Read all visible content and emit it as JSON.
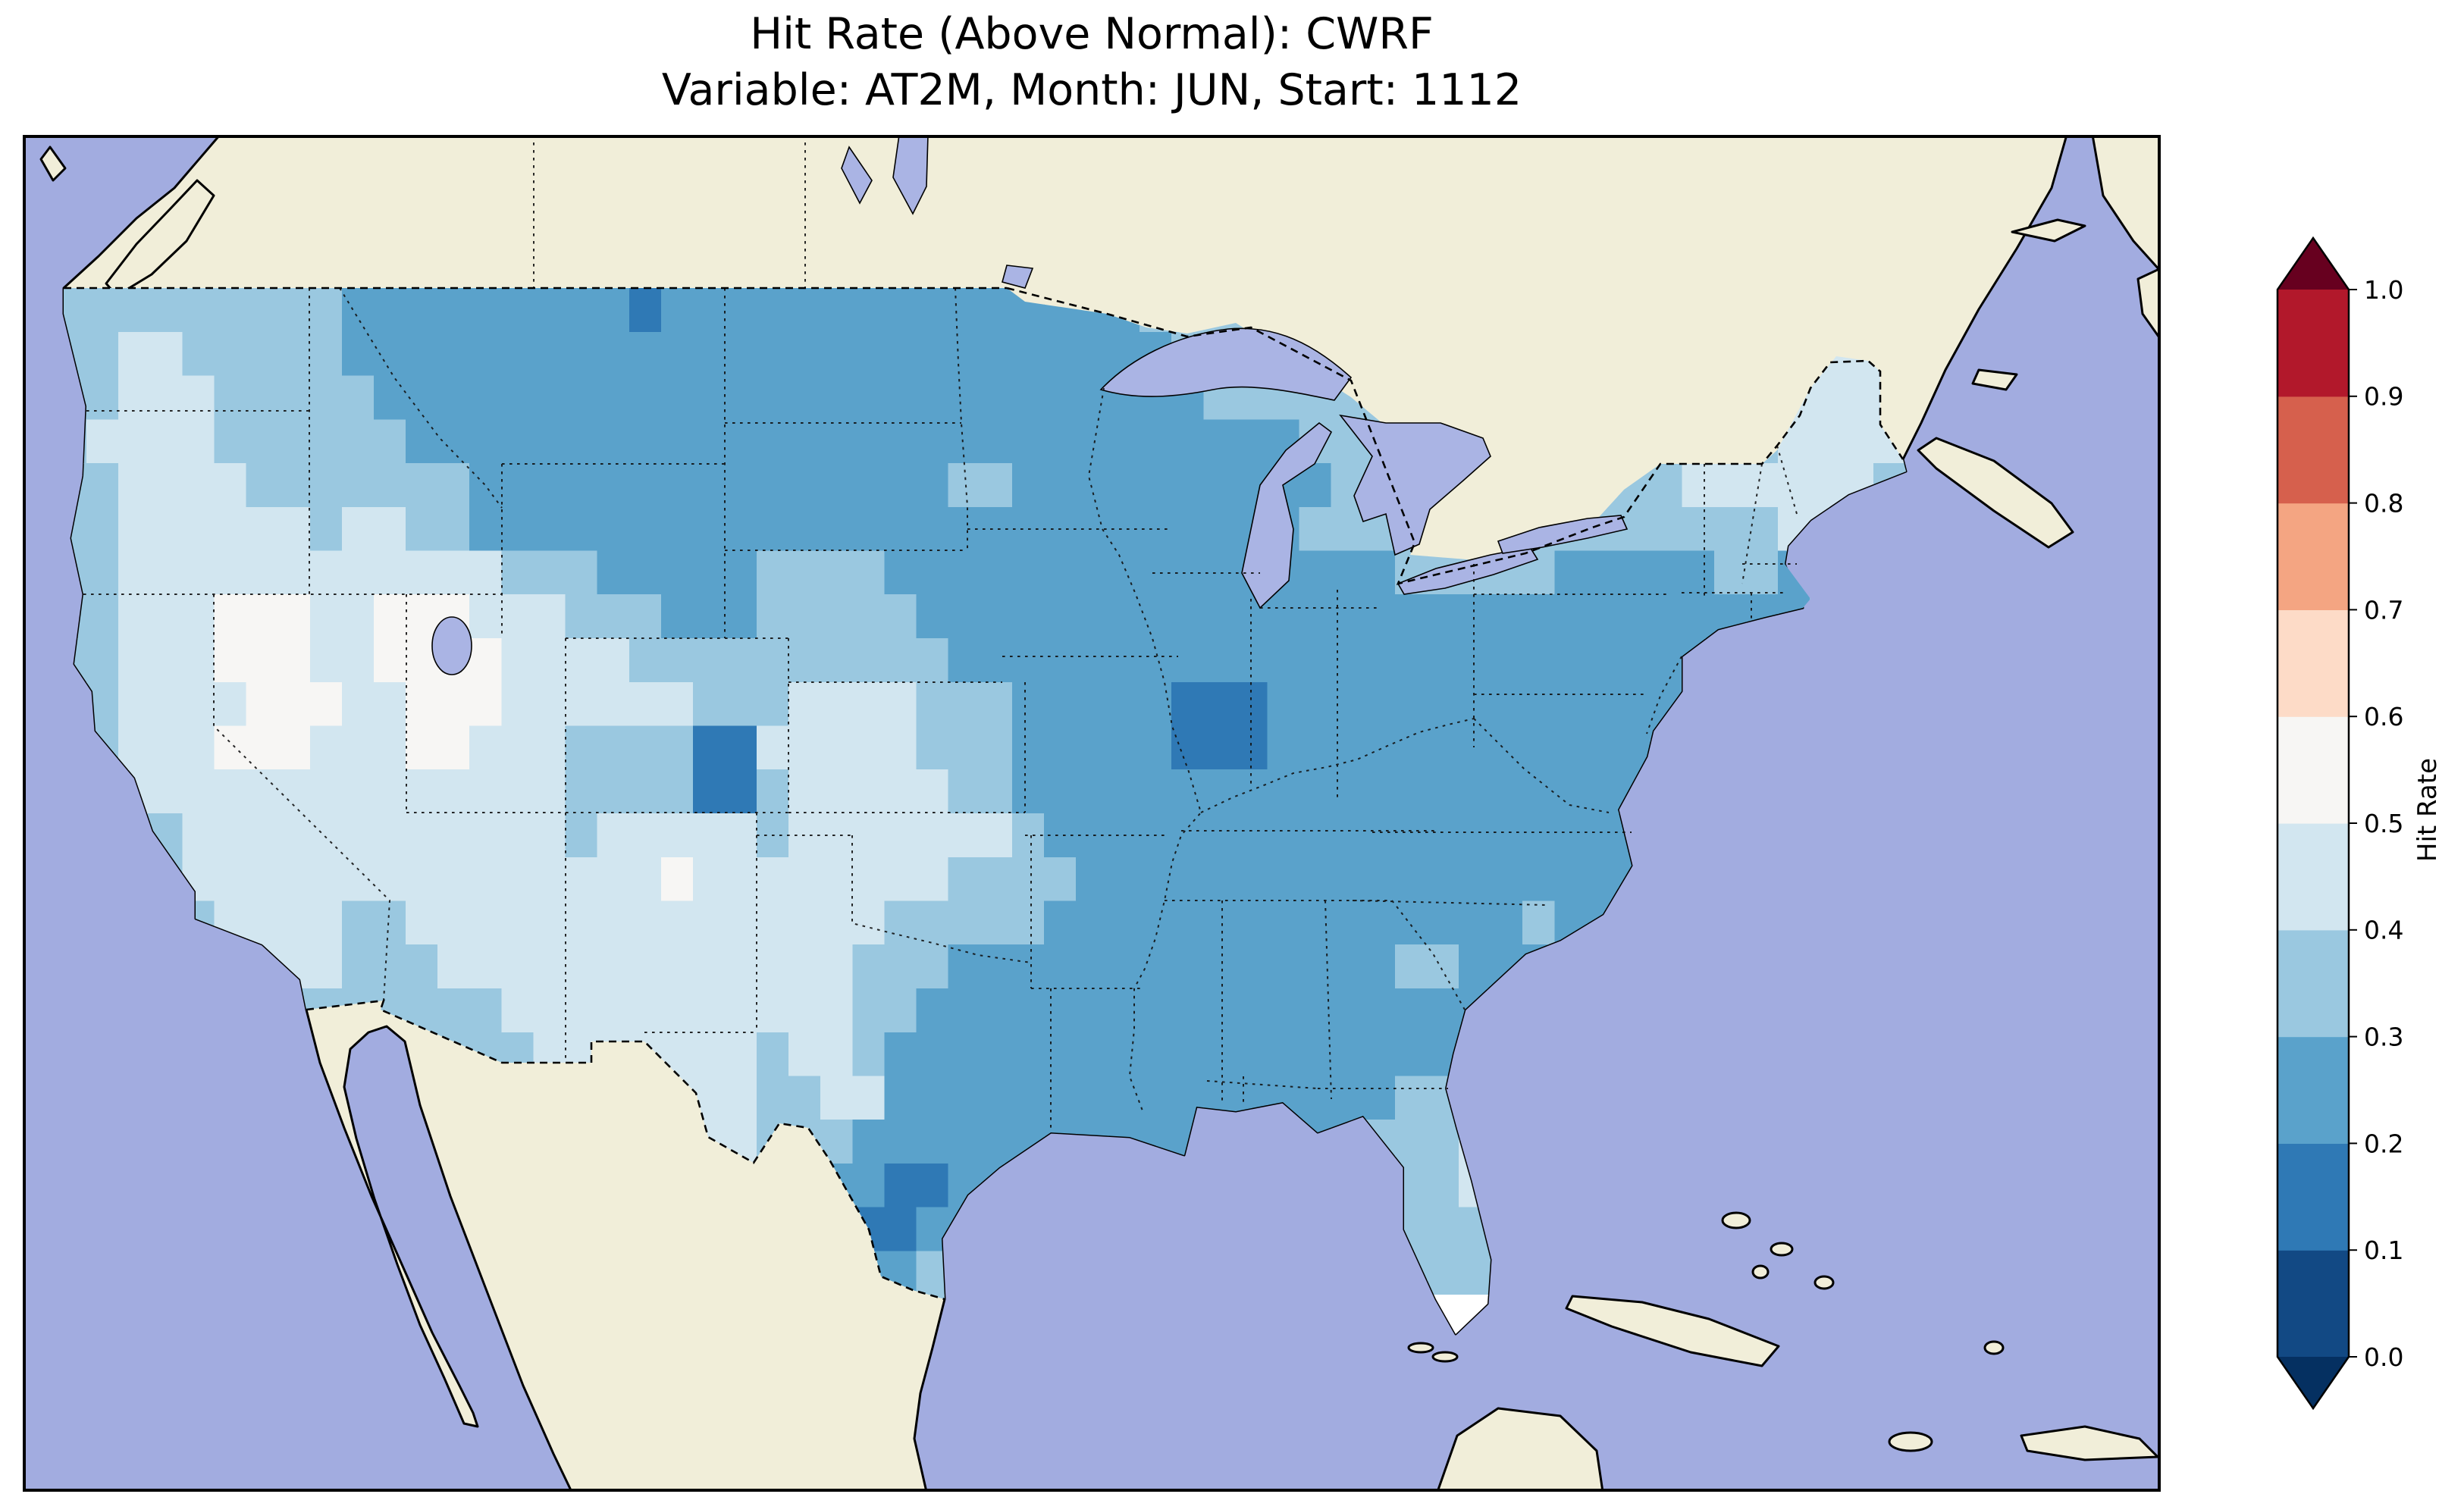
{
  "title": {
    "line1": "Hit Rate (Above Normal): CWRF",
    "line2": "Variable: AT2M, Month: JUN, Start: 1112"
  },
  "colors": {
    "ocean": "#a2ace0",
    "land": "#f1eed9",
    "lake": "#aab4e4",
    "missing": "#ffffff",
    "coastline": "#000000"
  },
  "chart_data": {
    "type": "heatmap",
    "title": "Hit Rate (Above Normal): CWRF",
    "subtitle": "Variable: AT2M, Month: JUN, Start: 1112",
    "model": "CWRF",
    "variable": "AT2M",
    "month": "JUN",
    "start": "1112",
    "region": "Contiguous United States",
    "projection_extent": {
      "lon_min": -126,
      "lon_max": -59,
      "lat_min": 21.5,
      "lat_max": 52.5
    },
    "colorbar": {
      "label": "Hit Rate",
      "ticks": [
        "0.0",
        "0.1",
        "0.2",
        "0.3",
        "0.4",
        "0.5",
        "0.6",
        "0.7",
        "0.8",
        "0.9",
        "1.0"
      ],
      "bin_edges": [
        0.0,
        0.1,
        0.2,
        0.3,
        0.4,
        0.5,
        0.6,
        0.7,
        0.8,
        0.9,
        1.0
      ],
      "bin_colors": [
        "#124984",
        "#2f79b5",
        "#5aa2cb",
        "#9ac8e0",
        "#d2e6f0",
        "#f7f6f4",
        "#fddbc7",
        "#f4a582",
        "#d6604d",
        "#b2182b"
      ],
      "under_color": "#053061",
      "over_color": "#67001f",
      "extend": "both",
      "orientation": "vertical",
      "position": "right"
    },
    "grid": {
      "lon0": -125,
      "dlon": 1,
      "lat0": 50,
      "dlat": 1,
      "legend": {
        "1": "0.1-0.2",
        "2": "0.2-0.3",
        "3": "0.3-0.4",
        "4": "0.4-0.5",
        "5": "0.5-0.6",
        "9": "missing/white"
      },
      "rows": [
        [
          "333333333",
          "2222222222222",
          "22222222",
          "2222222",
          "3333333",
          "33333333",
          "3333333"
        ],
        [
          "333333333",
          "2222222221222",
          "22222222",
          "2222333",
          "3333333",
          "33333333",
          "3333333"
        ],
        [
          "334433333",
          "2222222222222",
          "22222222",
          "2222233",
          "3333333",
          "33333333",
          "3344444"
        ],
        [
          "334443333",
          "3222222222222",
          "22222222",
          "2222223",
          "3333333",
          "33333333",
          "3344444"
        ],
        [
          "344443333",
          "3322222222222",
          "22222222",
          "2222222",
          "2233333",
          "33333333",
          "3344444"
        ],
        [
          "334444333",
          "3333222222222",
          "22222233",
          "2222222",
          "2223333",
          "33333334",
          "4444433"
        ],
        [
          "334444443",
          "4433222222222",
          "22222222",
          "2222222",
          "2233333",
          "33333333",
          "3344443"
        ],
        [
          "334444444",
          "4444433322222",
          "33332222",
          "2222222",
          "2222233",
          "33322222",
          "3322333"
        ],
        [
          "334445554",
          "4555444333222",
          "33333222",
          "2222222",
          "2222222",
          "22222222",
          "2223333"
        ],
        [
          "334445554",
          "4555544443333",
          "33333322",
          "2222222",
          "2222222",
          "22222222",
          "2222333"
        ],
        [
          "334444555",
          "4455544444433",
          "34444333",
          "2222211",
          "1222222",
          "22222222",
          "2233333"
        ],
        [
          "334445554",
          "4455444333311",
          "44444333",
          "2222211",
          "1222222",
          "22222222",
          "2222333"
        ],
        [
          "334444444",
          "4444444333311",
          "34444433",
          "2222222",
          "2222222",
          "22222233",
          "2233333"
        ],
        [
          "333344444",
          "4444444344444",
          "34444444",
          "3222222",
          "2222222",
          "22222222",
          "2233333"
        ],
        [
          "333344444",
          "4444444444544",
          "44444433",
          "3322222",
          "2222222",
          "22222222",
          "2223333"
        ],
        [
          "333334444",
          "3344444444444",
          "44443333",
          "3222222",
          "2222222",
          "22322322",
          "2333333"
        ],
        [
          "333334444",
          "3334444444444",
          "44433322",
          "2222222",
          "2222233",
          "22222233",
          "3333333"
        ],
        [
          "333333333",
          "3333344444444",
          "44433222",
          "2222222",
          "2222222",
          "22222233",
          "3333333"
        ],
        [
          "333333333",
          "3333334444444",
          "34432222",
          "2222222",
          "2222222",
          "22222233",
          "3333333"
        ],
        [
          "333333333",
          "3333333444444",
          "33442222",
          "2222222",
          "2222233",
          "23333333",
          "3333333"
        ],
        [
          "333333333",
          "3333333334444",
          "33322222",
          "2222222",
          "2222333",
          "43333333",
          "3333333"
        ],
        [
          "333333333",
          "3333333333344",
          "22221122",
          "2222222",
          "3333333",
          "44333333",
          "3333333"
        ],
        [
          "333333333",
          "3333333333333",
          "22211222",
          "3333333",
          "3333333",
          "34433333",
          "3333333"
        ],
        [
          "333333333",
          "3333333333333",
          "22222333",
          "3333333",
          "3333333",
          "34433333",
          "3333333"
        ],
        [
          "333333333",
          "3333333333333",
          "33333333",
          "3333333",
          "3333339",
          "94333333",
          "3333333"
        ],
        [
          "333333333",
          "3333333333333",
          "33333333",
          "3333333",
          "3333333",
          "33333333",
          "3333333"
        ]
      ]
    }
  }
}
